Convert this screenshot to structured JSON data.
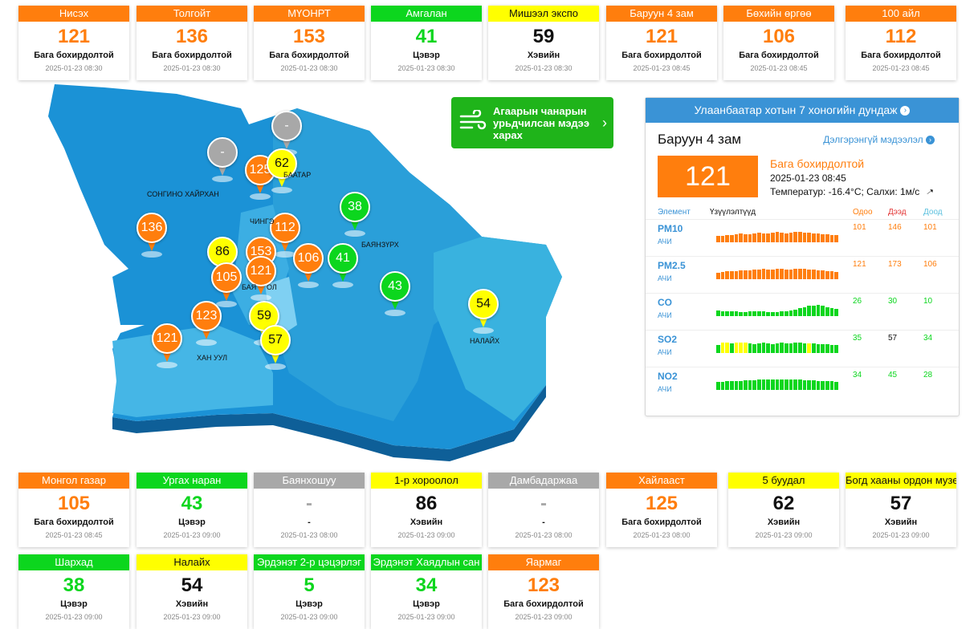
{
  "colors": {
    "orange": "#ff7e0d",
    "green": "#0cd61e",
    "yellow": "#ffff00",
    "gray": "#a8a8a8",
    "blue": "#3a93d6"
  },
  "top_cards": [
    {
      "name": "Нисэх",
      "value": "121",
      "status": "Бага бохирдолтой",
      "time": "2025-01-23 08:30",
      "level": "orange"
    },
    {
      "name": "Толгойт",
      "value": "136",
      "status": "Бага бохирдолтой",
      "time": "2025-01-23 08:30",
      "level": "orange"
    },
    {
      "name": "МҮОНРТ",
      "value": "153",
      "status": "Бага бохирдолтой",
      "time": "2025-01-23 08:30",
      "level": "orange"
    },
    {
      "name": "Амгалан",
      "value": "41",
      "status": "Цэвэр",
      "time": "2025-01-23 08:30",
      "level": "green"
    },
    {
      "name": "Мишээл экспо",
      "value": "59",
      "status": "Хэвийн",
      "time": "2025-01-23 08:30",
      "level": "yellow"
    },
    {
      "name": "Баруун 4 зам",
      "value": "121",
      "status": "Бага бохирдолтой",
      "time": "2025-01-23 08:45",
      "level": "orange"
    },
    {
      "name": "Бөхийн өргөө",
      "value": "106",
      "status": "Бага бохирдолтой",
      "time": "2025-01-23 08:45",
      "level": "orange"
    },
    {
      "name": "100 айл",
      "value": "112",
      "status": "Бага бохирдолтой",
      "time": "2025-01-23 08:45",
      "level": "orange"
    }
  ],
  "bottom_cards": [
    {
      "name": "Монгол газар",
      "value": "105",
      "status": "Бага бохирдолтой",
      "time": "2025-01-23 08:45",
      "level": "orange"
    },
    {
      "name": "Ургах наран",
      "value": "43",
      "status": "Цэвэр",
      "time": "2025-01-23 09:00",
      "level": "green"
    },
    {
      "name": "Баянхошуу",
      "value": "-",
      "status": "-",
      "time": "2025-01-23 08:00",
      "level": "gray"
    },
    {
      "name": "1-р хороолол",
      "value": "86",
      "status": "Хэвийн",
      "time": "2025-01-23 09:00",
      "level": "yellow"
    },
    {
      "name": "Дамбадаржаа",
      "value": "-",
      "status": "-",
      "time": "2025-01-23 08:00",
      "level": "gray"
    },
    {
      "name": "Хайлааст",
      "value": "125",
      "status": "Бага бохирдолтой",
      "time": "2025-01-23 08:00",
      "level": "orange"
    },
    {
      "name": "5 буудал",
      "value": "62",
      "status": "Хэвийн",
      "time": "2025-01-23 09:00",
      "level": "yellow"
    },
    {
      "name": "Богд хааны ордон музей",
      "value": "57",
      "status": "Хэвийн",
      "time": "2025-01-23 09:00",
      "level": "yellow"
    },
    {
      "name": "Шархад",
      "value": "38",
      "status": "Цэвэр",
      "time": "2025-01-23 09:00",
      "level": "green"
    },
    {
      "name": "Налайх",
      "value": "54",
      "status": "Хэвийн",
      "time": "2025-01-23 09:00",
      "level": "yellow"
    },
    {
      "name": "Эрдэнэт 2-р цэцэрлэг",
      "value": "5",
      "status": "Цэвэр",
      "time": "2025-01-23 09:00",
      "level": "green"
    },
    {
      "name": "Эрдэнэт Хаядлын сан",
      "value": "34",
      "status": "Цэвэр",
      "time": "2025-01-23 09:00",
      "level": "green"
    },
    {
      "name": "Яармаг",
      "value": "123",
      "status": "Бага бохирдолтой",
      "time": "2025-01-23 09:00",
      "level": "orange"
    }
  ],
  "map": {
    "districts": [
      "СОНГИНО ХАЙРХАН",
      "ЧИНГЭ",
      "БАЯНЗҮРХ",
      "БАЯ",
      "ОЛ",
      "ХАН УУЛ",
      "НАЛАЙХ",
      "БААТАР"
    ],
    "pins": [
      {
        "value": "-",
        "level": "gray"
      },
      {
        "value": "-",
        "level": "gray"
      },
      {
        "value": "125",
        "level": "orange"
      },
      {
        "value": "62",
        "level": "yellow"
      },
      {
        "value": "38",
        "level": "green"
      },
      {
        "value": "136",
        "level": "orange"
      },
      {
        "value": "112",
        "level": "orange"
      },
      {
        "value": "86",
        "level": "yellow"
      },
      {
        "value": "153",
        "level": "orange"
      },
      {
        "value": "106",
        "level": "orange"
      },
      {
        "value": "41",
        "level": "green"
      },
      {
        "value": "121",
        "level": "orange"
      },
      {
        "value": "105",
        "level": "orange"
      },
      {
        "value": "43",
        "level": "green"
      },
      {
        "value": "123",
        "level": "orange"
      },
      {
        "value": "59",
        "level": "yellow"
      },
      {
        "value": "57",
        "level": "yellow"
      },
      {
        "value": "121",
        "level": "orange"
      },
      {
        "value": "54",
        "level": "yellow"
      }
    ]
  },
  "forecast": {
    "label": "Агаарын чанарын урьдчилсан мэдээ харах",
    "icon": "wind-icon"
  },
  "panel": {
    "header": "Улаанбаатар хотын 7 хоногийн дундаж",
    "station": "Баруун 4 зам",
    "more_link": "Дэлгэрэнгүй мэдээлэл",
    "aqi": "121",
    "status": "Бага бохирдолтой",
    "time": "2025-01-23 08:45",
    "weather": "Температур: -16.4°C; Салхи: 1м/с",
    "col_element": "Элемент",
    "col_indicator": "Үзүүлэлтүүд",
    "col_now": "Одоо",
    "col_max": "Дээд",
    "col_min": "Доод",
    "rows": [
      {
        "name": "PM10",
        "unit": "АЧИ",
        "now": "101",
        "max": "146",
        "min": "101",
        "now_color": "#ff7e0d",
        "max_color": "#ff7e0d",
        "min_color": "#ff7e0d",
        "bars": [
          0.55,
          0.6,
          0.65,
          0.62,
          0.7,
          0.75,
          0.68,
          0.72,
          0.8,
          0.85,
          0.78,
          0.82,
          0.88,
          0.9,
          0.86,
          0.8,
          0.84,
          0.9,
          0.95,
          0.88,
          0.85,
          0.8,
          0.78,
          0.74,
          0.7,
          0.66,
          0.62
        ],
        "bar_levels": [
          "o",
          "o",
          "o",
          "o",
          "o",
          "o",
          "o",
          "o",
          "o",
          "o",
          "o",
          "o",
          "o",
          "o",
          "o",
          "o",
          "o",
          "o",
          "o",
          "o",
          "o",
          "o",
          "o",
          "o",
          "o",
          "o",
          "o"
        ]
      },
      {
        "name": "PM2.5",
        "unit": "АЧИ",
        "now": "121",
        "max": "173",
        "min": "106",
        "now_color": "#ff7e0d",
        "max_color": "#ff7e0d",
        "min_color": "#ff7e0d",
        "bars": [
          0.6,
          0.62,
          0.7,
          0.72,
          0.74,
          0.8,
          0.78,
          0.82,
          0.84,
          0.88,
          0.9,
          0.86,
          0.84,
          0.9,
          0.92,
          0.88,
          0.86,
          0.9,
          0.94,
          0.92,
          0.88,
          0.84,
          0.8,
          0.76,
          0.72,
          0.7,
          0.66
        ],
        "bar_levels": [
          "o",
          "o",
          "o",
          "o",
          "o",
          "o",
          "o",
          "o",
          "o",
          "o",
          "o",
          "o",
          "o",
          "o",
          "o",
          "o",
          "o",
          "o",
          "o",
          "o",
          "o",
          "o",
          "o",
          "o",
          "o",
          "o",
          "o"
        ]
      },
      {
        "name": "CO",
        "unit": "АЧИ",
        "now": "26",
        "max": "30",
        "min": "10",
        "now_color": "#0cd61e",
        "max_color": "#0cd61e",
        "min_color": "#0cd61e",
        "bars": [
          0.5,
          0.45,
          0.4,
          0.42,
          0.4,
          0.38,
          0.36,
          0.4,
          0.44,
          0.42,
          0.4,
          0.36,
          0.34,
          0.38,
          0.4,
          0.44,
          0.5,
          0.6,
          0.7,
          0.8,
          0.9,
          0.95,
          1.0,
          0.9,
          0.8,
          0.7,
          0.65
        ],
        "bar_levels": [
          "g",
          "g",
          "g",
          "g",
          "g",
          "g",
          "g",
          "g",
          "g",
          "g",
          "g",
          "g",
          "g",
          "g",
          "g",
          "g",
          "g",
          "g",
          "g",
          "g",
          "g",
          "g",
          "g",
          "g",
          "g",
          "g",
          "g"
        ]
      },
      {
        "name": "SO2",
        "unit": "АЧИ",
        "now": "35",
        "max": "57",
        "min": "34",
        "now_color": "#0cd61e",
        "max_color": "#111111",
        "min_color": "#0cd61e",
        "bars": [
          0.7,
          0.9,
          0.95,
          0.85,
          0.9,
          0.95,
          0.9,
          0.85,
          0.8,
          0.88,
          0.9,
          0.86,
          0.82,
          0.84,
          0.9,
          0.88,
          0.86,
          0.9,
          0.92,
          0.88,
          0.84,
          0.86,
          0.8,
          0.78,
          0.76,
          0.74,
          0.7
        ],
        "bar_levels": [
          "g",
          "y",
          "y",
          "g",
          "y",
          "y",
          "y",
          "g",
          "g",
          "g",
          "g",
          "g",
          "g",
          "g",
          "g",
          "g",
          "g",
          "g",
          "g",
          "g",
          "y",
          "g",
          "g",
          "g",
          "g",
          "g",
          "g"
        ]
      },
      {
        "name": "NO2",
        "unit": "АЧИ",
        "now": "34",
        "max": "45",
        "min": "28",
        "now_color": "#0cd61e",
        "max_color": "#0cd61e",
        "min_color": "#0cd61e",
        "bars": [
          0.7,
          0.72,
          0.75,
          0.78,
          0.8,
          0.82,
          0.84,
          0.86,
          0.88,
          0.9,
          0.92,
          0.94,
          0.95,
          0.96,
          0.95,
          0.94,
          0.93,
          0.92,
          0.9,
          0.88,
          0.86,
          0.84,
          0.82,
          0.8,
          0.78,
          0.76,
          0.74
        ],
        "bar_levels": [
          "g",
          "g",
          "g",
          "g",
          "g",
          "g",
          "g",
          "g",
          "g",
          "g",
          "g",
          "g",
          "g",
          "g",
          "g",
          "g",
          "g",
          "g",
          "g",
          "g",
          "g",
          "g",
          "g",
          "g",
          "g",
          "g",
          "g"
        ]
      }
    ]
  }
}
